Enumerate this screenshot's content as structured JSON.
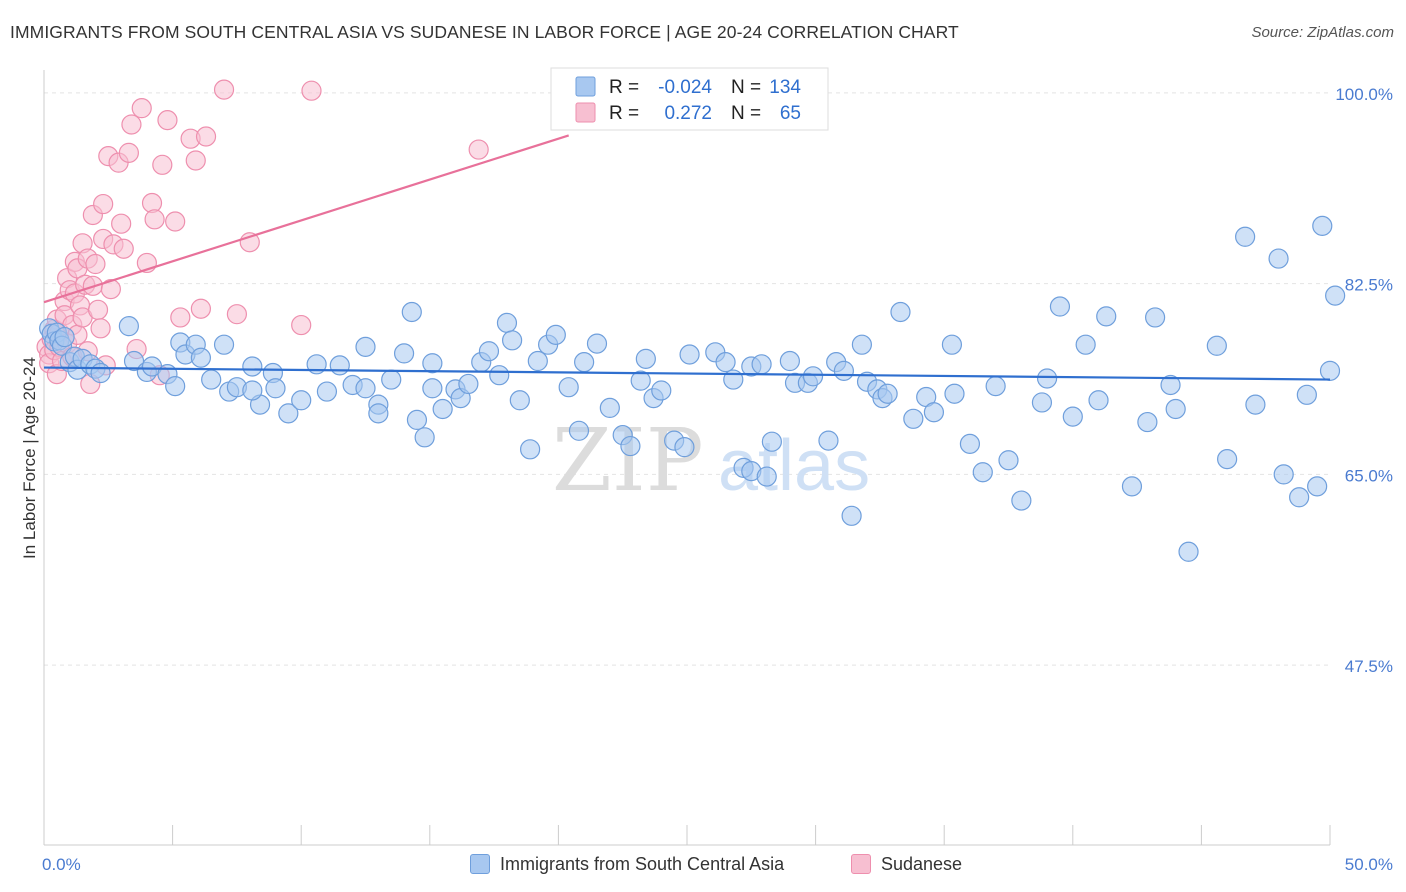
{
  "title": "IMMIGRANTS FROM SOUTH CENTRAL ASIA VS SUDANESE IN LABOR FORCE | AGE 20-24 CORRELATION CHART",
  "source": "Source: ZipAtlas.com",
  "watermark": {
    "zip": "ZIP",
    "atlas": "atlas"
  },
  "colors": {
    "blue_fill": "#a8c8f0",
    "blue_stroke": "#6f9fdc",
    "blue_line": "#2f6fcf",
    "pink_fill": "#f7bfd1",
    "pink_stroke": "#ee8fae",
    "pink_line": "#e8719a",
    "axis_label": "#4a7bd0",
    "grid": "#e4e4e4"
  },
  "legend_box": {
    "rows": [
      {
        "series": "blue",
        "r_label": "R =",
        "r_value": "-0.024",
        "n_label": "N =",
        "n_value": "134"
      },
      {
        "series": "pink",
        "r_label": "R =",
        "r_value": "0.272",
        "n_label": "N =",
        "n_value": "65"
      }
    ]
  },
  "legend_bottom": [
    {
      "series": "blue",
      "label": "Immigrants from South Central Asia"
    },
    {
      "series": "pink",
      "label": "Sudanese"
    }
  ],
  "chart_data": {
    "type": "scatter",
    "title": "IMMIGRANTS FROM SOUTH CENTRAL ASIA VS SUDANESE IN LABOR FORCE | AGE 20-24 CORRELATION CHART",
    "xlabel": "",
    "ylabel": "In Labor Force | Age 20-24",
    "xlim": [
      0,
      50
    ],
    "ylim": [
      31,
      103
    ],
    "x_tick_labels": [
      {
        "value": 0,
        "label": "0.0%"
      },
      {
        "value": 50,
        "label": "50.0%"
      }
    ],
    "y_tick_labels": [
      {
        "value": 100,
        "label": "100.0%"
      },
      {
        "value": 82.5,
        "label": "82.5%"
      },
      {
        "value": 65,
        "label": "65.0%"
      },
      {
        "value": 47.5,
        "label": "47.5%"
      }
    ],
    "series": [
      {
        "name": "Immigrants from South Central Asia",
        "color": "blue",
        "trend": {
          "x0": 0,
          "y0": 74.8,
          "x1": 50,
          "y1": 73.7
        },
        "points": [
          [
            0.2,
            78.4
          ],
          [
            0.3,
            77.9
          ],
          [
            0.4,
            77.2
          ],
          [
            0.5,
            78.0
          ],
          [
            0.6,
            77.3
          ],
          [
            0.7,
            76.8
          ],
          [
            0.8,
            77.6
          ],
          [
            1.0,
            75.3
          ],
          [
            1.2,
            75.8
          ],
          [
            1.3,
            74.6
          ],
          [
            1.5,
            75.6
          ],
          [
            1.8,
            75.1
          ],
          [
            2.0,
            74.7
          ],
          [
            2.2,
            74.3
          ],
          [
            3.3,
            78.6
          ],
          [
            3.5,
            75.4
          ],
          [
            4.0,
            74.4
          ],
          [
            4.2,
            74.9
          ],
          [
            4.8,
            74.2
          ],
          [
            5.1,
            73.1
          ],
          [
            5.3,
            77.1
          ],
          [
            5.5,
            76.0
          ],
          [
            5.9,
            76.9
          ],
          [
            6.1,
            75.7
          ],
          [
            6.5,
            73.7
          ],
          [
            7.0,
            76.9
          ],
          [
            7.2,
            72.6
          ],
          [
            7.5,
            73.0
          ],
          [
            8.1,
            74.9
          ],
          [
            8.4,
            71.4
          ],
          [
            8.9,
            74.3
          ],
          [
            8.1,
            72.7
          ],
          [
            9.0,
            72.9
          ],
          [
            9.5,
            70.6
          ],
          [
            10.0,
            71.8
          ],
          [
            10.6,
            75.1
          ],
          [
            11.0,
            72.6
          ],
          [
            11.5,
            75.0
          ],
          [
            12.5,
            76.7
          ],
          [
            12.0,
            73.2
          ],
          [
            12.5,
            72.9
          ],
          [
            13.0,
            71.4
          ],
          [
            13.0,
            70.6
          ],
          [
            13.5,
            73.7
          ],
          [
            14.0,
            76.1
          ],
          [
            14.3,
            79.9
          ],
          [
            14.5,
            70.0
          ],
          [
            14.8,
            68.4
          ],
          [
            15.1,
            75.2
          ],
          [
            15.1,
            72.9
          ],
          [
            15.5,
            71.0
          ],
          [
            16.0,
            72.8
          ],
          [
            16.2,
            72.0
          ],
          [
            16.5,
            73.3
          ],
          [
            17.0,
            75.3
          ],
          [
            17.3,
            76.3
          ],
          [
            17.7,
            74.1
          ],
          [
            18.0,
            78.9
          ],
          [
            18.2,
            77.3
          ],
          [
            18.5,
            71.8
          ],
          [
            18.9,
            67.3
          ],
          [
            19.2,
            75.4
          ],
          [
            19.6,
            76.9
          ],
          [
            19.9,
            77.8
          ],
          [
            20.4,
            73.0
          ],
          [
            20.8,
            69.0
          ],
          [
            21.0,
            75.3
          ],
          [
            21.5,
            77.0
          ],
          [
            22.0,
            71.1
          ],
          [
            22.5,
            68.6
          ],
          [
            22.8,
            67.6
          ],
          [
            23.2,
            73.6
          ],
          [
            23.4,
            75.6
          ],
          [
            23.7,
            72.0
          ],
          [
            24.0,
            72.7
          ],
          [
            24.5,
            68.1
          ],
          [
            24.9,
            67.5
          ],
          [
            25.1,
            76.0
          ],
          [
            26.1,
            76.2
          ],
          [
            26.5,
            75.3
          ],
          [
            26.8,
            73.7
          ],
          [
            27.2,
            65.6
          ],
          [
            27.5,
            65.3
          ],
          [
            27.5,
            74.9
          ],
          [
            27.9,
            75.1
          ],
          [
            28.1,
            64.8
          ],
          [
            28.3,
            68.0
          ],
          [
            29.0,
            75.4
          ],
          [
            29.2,
            73.4
          ],
          [
            29.7,
            73.4
          ],
          [
            29.9,
            74.0
          ],
          [
            30.5,
            68.1
          ],
          [
            30.8,
            75.3
          ],
          [
            31.1,
            74.5
          ],
          [
            31.4,
            61.2
          ],
          [
            31.8,
            76.9
          ],
          [
            32.0,
            73.5
          ],
          [
            32.4,
            72.8
          ],
          [
            32.6,
            72.0
          ],
          [
            32.8,
            72.4
          ],
          [
            33.3,
            79.9
          ],
          [
            33.8,
            70.1
          ],
          [
            34.3,
            72.1
          ],
          [
            34.6,
            70.7
          ],
          [
            35.3,
            76.9
          ],
          [
            35.4,
            72.4
          ],
          [
            36.0,
            67.8
          ],
          [
            36.5,
            65.2
          ],
          [
            37.0,
            73.1
          ],
          [
            37.5,
            66.3
          ],
          [
            38.0,
            62.6
          ],
          [
            38.8,
            71.6
          ],
          [
            39.0,
            73.8
          ],
          [
            39.5,
            80.4
          ],
          [
            40.0,
            70.3
          ],
          [
            40.5,
            76.9
          ],
          [
            41.0,
            71.8
          ],
          [
            41.3,
            79.5
          ],
          [
            42.3,
            63.9
          ],
          [
            42.9,
            69.8
          ],
          [
            43.2,
            79.4
          ],
          [
            43.8,
            73.2
          ],
          [
            44.0,
            71.0
          ],
          [
            44.5,
            57.9
          ],
          [
            45.6,
            76.8
          ],
          [
            46.0,
            66.4
          ],
          [
            46.7,
            86.8
          ],
          [
            47.1,
            71.4
          ],
          [
            48.0,
            84.8
          ],
          [
            48.2,
            65.0
          ],
          [
            48.8,
            62.9
          ],
          [
            49.1,
            72.3
          ],
          [
            49.5,
            63.9
          ],
          [
            49.7,
            87.8
          ],
          [
            50.0,
            74.5
          ],
          [
            50.2,
            81.4
          ]
        ]
      },
      {
        "name": "Sudanese",
        "color": "pink",
        "trend": {
          "x0": 0,
          "y0": 80.8,
          "x1": 20.4,
          "y1": 96.1
        },
        "points": [
          [
            0.1,
            76.7
          ],
          [
            0.2,
            76.0
          ],
          [
            0.2,
            75.2
          ],
          [
            0.3,
            77.4
          ],
          [
            0.4,
            78.3
          ],
          [
            0.4,
            76.4
          ],
          [
            0.5,
            74.2
          ],
          [
            0.5,
            79.2
          ],
          [
            0.6,
            78.0
          ],
          [
            0.6,
            76.7
          ],
          [
            0.7,
            75.4
          ],
          [
            0.8,
            80.9
          ],
          [
            0.8,
            79.6
          ],
          [
            0.9,
            83.0
          ],
          [
            0.9,
            77.0
          ],
          [
            1.0,
            81.9
          ],
          [
            1.1,
            75.8
          ],
          [
            1.1,
            78.7
          ],
          [
            1.2,
            84.5
          ],
          [
            1.2,
            81.6
          ],
          [
            1.3,
            77.8
          ],
          [
            1.3,
            83.9
          ],
          [
            1.4,
            80.5
          ],
          [
            1.5,
            86.2
          ],
          [
            1.5,
            79.4
          ],
          [
            1.6,
            82.4
          ],
          [
            1.7,
            84.8
          ],
          [
            1.7,
            76.3
          ],
          [
            1.8,
            73.3
          ],
          [
            1.9,
            88.8
          ],
          [
            1.9,
            82.3
          ],
          [
            2.0,
            84.3
          ],
          [
            2.1,
            80.1
          ],
          [
            2.2,
            78.4
          ],
          [
            2.3,
            89.8
          ],
          [
            2.3,
            86.6
          ],
          [
            2.4,
            75.0
          ],
          [
            2.5,
            94.2
          ],
          [
            2.6,
            82.0
          ],
          [
            2.7,
            86.1
          ],
          [
            2.9,
            93.6
          ],
          [
            3.0,
            88.0
          ],
          [
            3.1,
            85.7
          ],
          [
            3.3,
            94.5
          ],
          [
            3.4,
            97.1
          ],
          [
            3.6,
            76.5
          ],
          [
            3.8,
            98.6
          ],
          [
            4.0,
            84.4
          ],
          [
            4.2,
            89.9
          ],
          [
            4.3,
            88.4
          ],
          [
            4.5,
            74.1
          ],
          [
            4.6,
            93.4
          ],
          [
            4.8,
            97.5
          ],
          [
            5.1,
            88.2
          ],
          [
            5.3,
            79.4
          ],
          [
            5.7,
            95.8
          ],
          [
            5.9,
            93.8
          ],
          [
            6.1,
            80.2
          ],
          [
            6.3,
            96.0
          ],
          [
            7.0,
            100.3
          ],
          [
            7.5,
            79.7
          ],
          [
            8.0,
            86.3
          ],
          [
            10.0,
            78.7
          ],
          [
            10.4,
            100.2
          ],
          [
            16.9,
            94.8
          ]
        ]
      }
    ]
  }
}
